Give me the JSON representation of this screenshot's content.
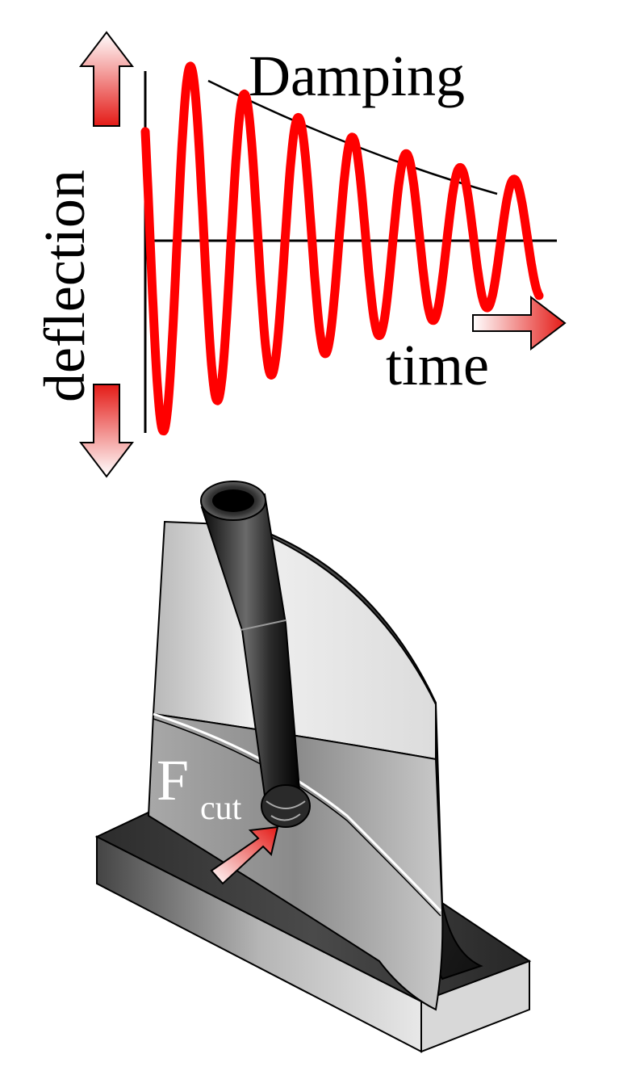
{
  "labels": {
    "damping": "Damping",
    "deflection": "deflection",
    "time": "time",
    "force": "F",
    "force_subscript": "cut"
  },
  "colors": {
    "signal": "#ff0000",
    "arrow_red": "#e41b17",
    "axis": "#000000",
    "tool": "#1a1a1a",
    "blade_light": "#e6e6e6",
    "blade_dark": "#6e6e6e",
    "base": "#3a3a3a"
  },
  "icons": {
    "deflection_up": "arrow-up-icon",
    "deflection_down": "arrow-down-icon",
    "time_right": "arrow-right-icon",
    "cutting_force": "arrow-diagonal-icon"
  }
}
